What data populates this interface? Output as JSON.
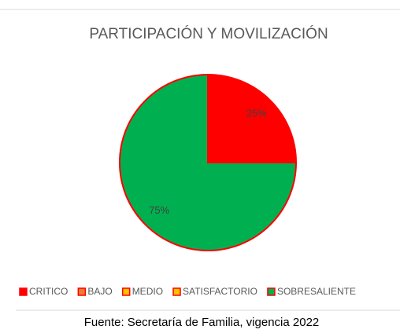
{
  "chart_data": {
    "type": "pie",
    "title": "PARTICIPACIÓN Y MOVILIZACIÓN",
    "categories": [
      "CRITICO",
      "BAJO",
      "MEDIO",
      "SATISFACTORIO",
      "SOBRESALIENTE"
    ],
    "values": [
      25,
      0,
      0,
      0,
      75
    ],
    "value_labels": [
      "25%",
      null,
      null,
      null,
      "75%"
    ],
    "colors": [
      "#ff0000",
      "#ed7d31",
      "#ffc000",
      "#ffc000",
      "#00b050"
    ],
    "edge_color": "#ff0000",
    "legend": "bottom",
    "source": "Fuente: Secretaría de Familia, vigencia 2022"
  }
}
